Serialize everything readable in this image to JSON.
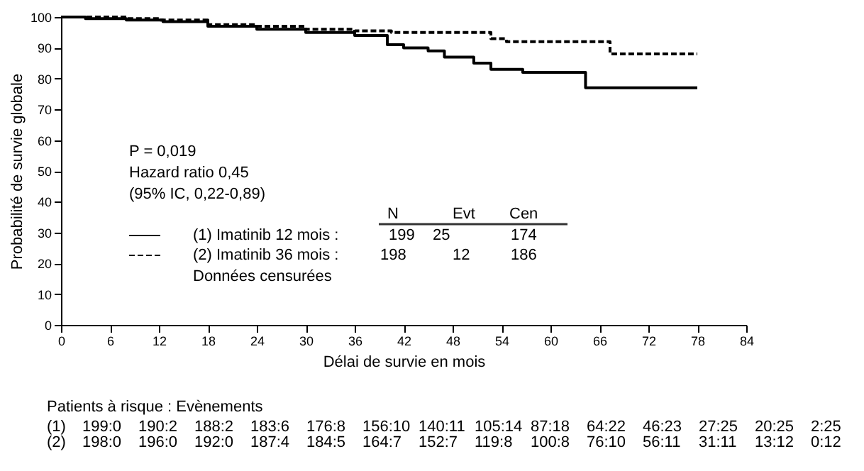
{
  "chart_data": {
    "type": "step",
    "xlabel": "Délai de survie en mois",
    "ylabel": "Probabilité de survie globale",
    "series": [
      {
        "name": "(1) Imatinib 12 mois :",
        "color": "#000000",
        "line_style": "solid",
        "x": [
          0,
          3,
          8,
          12.5,
          18,
          24,
          30,
          36,
          40,
          42,
          45,
          47,
          50.6,
          52.7,
          56.6,
          64.3,
          78
        ],
        "values": [
          100,
          99.5,
          99,
          98.5,
          97,
          96,
          95,
          94,
          91,
          90,
          89,
          87,
          85,
          83,
          82,
          77,
          77
        ]
      },
      {
        "name": "(2) Imatinib 36 mois :",
        "color": "#000000",
        "line_style": "dashed",
        "x": [
          0,
          8,
          12,
          18,
          24,
          30,
          36,
          40.5,
          52.7,
          54.6,
          67.3,
          78
        ],
        "values": [
          100,
          99.5,
          99,
          97.5,
          97,
          96,
          95.5,
          95,
          93,
          92,
          88,
          88
        ]
      }
    ],
    "xlim": [
      0,
      84
    ],
    "xticks": [
      0,
      6,
      12,
      18,
      24,
      30,
      36,
      42,
      48,
      54,
      60,
      66,
      72,
      78,
      84
    ],
    "ylim": [
      0,
      100
    ],
    "yticks": [
      0,
      10,
      20,
      30,
      40,
      50,
      60,
      70,
      80,
      90,
      100
    ],
    "grid": false,
    "legend": "bottom left",
    "annotations": [
      "P = 0,019",
      "Hazard ratio 0,45",
      "(95% IC, 0,22-0,89)",
      "N",
      "Evt",
      "Cen",
      "199",
      "25",
      "174",
      "198",
      "12",
      "186",
      "Données censurées",
      "Patients à risque : Evènements",
      "(1)",
      "199:0",
      "190:2",
      "188:2",
      "183:6",
      "176:8",
      "156:10",
      "140:11",
      "105:14",
      "87:18",
      "64:22",
      "46:23",
      "27:25",
      "20:25",
      "2:25",
      "(2)",
      "198:0",
      "196:0",
      "192:0",
      "187:4",
      "184:5",
      "164:7",
      "152:7",
      "119:8",
      "100:8",
      "76:10",
      "56:11",
      "31:11",
      "13:12",
      "0:12"
    ]
  }
}
